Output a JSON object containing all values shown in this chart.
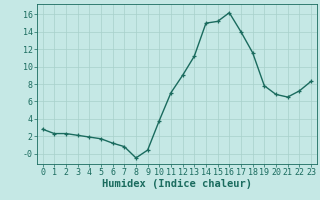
{
  "x": [
    0,
    1,
    2,
    3,
    4,
    5,
    6,
    7,
    8,
    9,
    10,
    11,
    12,
    13,
    14,
    15,
    16,
    17,
    18,
    19,
    20,
    21,
    22,
    23
  ],
  "y": [
    2.8,
    2.3,
    2.3,
    2.1,
    1.9,
    1.7,
    1.2,
    0.8,
    -0.5,
    0.4,
    3.8,
    7.0,
    9.0,
    11.2,
    15.0,
    15.2,
    16.2,
    14.0,
    11.6,
    7.8,
    6.8,
    6.5,
    7.2,
    8.3
  ],
  "line_color": "#1a6b5e",
  "marker": "+",
  "markersize": 3.5,
  "linewidth": 1.0,
  "background_color": "#c5e8e5",
  "grid_color": "#a8d0cb",
  "xlabel": "Humidex (Indice chaleur)",
  "xlabel_fontsize": 7.5,
  "yticks": [
    0,
    2,
    4,
    6,
    8,
    10,
    12,
    14,
    16
  ],
  "ytick_labels": [
    "-0",
    "2",
    "4",
    "6",
    "8",
    "10",
    "12",
    "14",
    "16"
  ],
  "xticks": [
    0,
    1,
    2,
    3,
    4,
    5,
    6,
    7,
    8,
    9,
    10,
    11,
    12,
    13,
    14,
    15,
    16,
    17,
    18,
    19,
    20,
    21,
    22,
    23
  ],
  "ylim": [
    -1.2,
    17.2
  ],
  "xlim": [
    -0.5,
    23.5
  ],
  "tick_fontsize": 6,
  "axis_color": "#1a6b5e"
}
